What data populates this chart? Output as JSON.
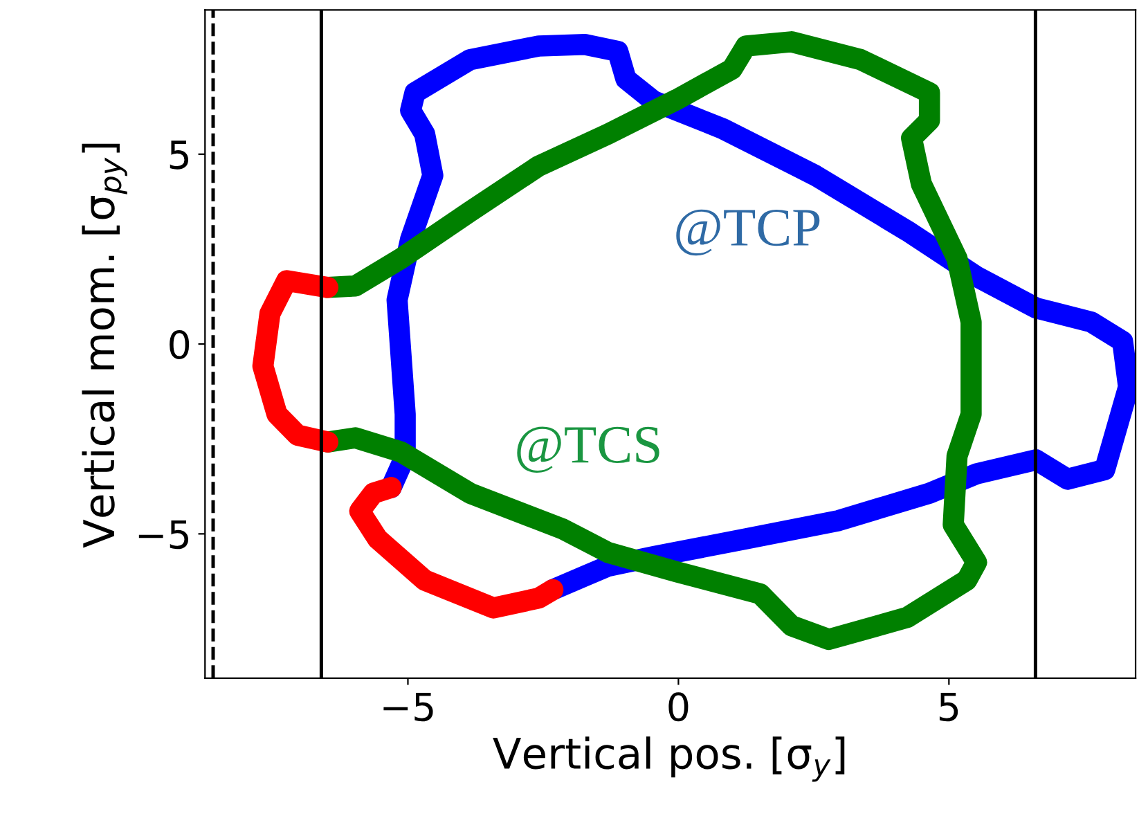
{
  "chart_data": {
    "type": "line",
    "xlabel": "Vertical pos. [σ$_{y}$]",
    "ylabel": "Vertical mom. [σ$_{py}$]",
    "xlim": [
      -8.75,
      8.45
    ],
    "ylim": [
      -8.8,
      8.8
    ],
    "xticks": [
      {
        "value": -5,
        "label": "−5"
      },
      0,
      5
    ],
    "yticks": [
      {
        "value": -5,
        "label": "−5"
      },
      0,
      5
    ],
    "grid": false,
    "legend": false,
    "line_style": "solid",
    "annotations": [
      "@TCP",
      "@TCS"
    ],
    "ref_lines": [
      {
        "axis": "x",
        "value": -6.6,
        "color": "#000000",
        "line_style": "solid"
      },
      {
        "axis": "x",
        "value": 6.6,
        "color": "#000000",
        "line_style": "solid"
      },
      {
        "axis": "x",
        "value": -8.6,
        "color": "#000000",
        "line_style": "dashed"
      }
    ],
    "series": [
      {
        "color": "#0000ff",
        "x": [
          -5.31,
          -5.05,
          -5.05,
          -5.2,
          -4.95,
          -4.54,
          -4.69,
          -4.95,
          -4.87,
          -3.85,
          -2.58,
          -1.73,
          -1.12,
          -0.97,
          -0.46,
          0.82,
          2.53,
          4.23,
          5.51,
          6.61,
          7.63,
          8.21,
          8.32,
          7.88,
          7.19,
          6.61,
          5.51,
          4.64,
          2.96,
          1.25,
          -0.46,
          -1.3,
          -1.73,
          -2.32
        ],
        "values": [
          -3.78,
          -2.95,
          -1.85,
          1.16,
          2.76,
          4.44,
          5.53,
          6.15,
          6.62,
          7.49,
          7.85,
          7.89,
          7.71,
          6.98,
          6.4,
          5.67,
          4.44,
          2.98,
          1.78,
          0.95,
          0.58,
          0.07,
          -1.13,
          -3.31,
          -3.56,
          -3.05,
          -3.42,
          -3.93,
          -4.65,
          -5.13,
          -5.6,
          -5.85,
          -6.11,
          -6.47
        ]
      },
      {
        "color": "#008000",
        "x": [
          -6.48,
          -5.97,
          -5.13,
          -3.85,
          -2.58,
          -1.3,
          -0.03,
          0.99,
          1.25,
          2.09,
          3.37,
          4.64,
          4.64,
          4.31,
          4.49,
          5.15,
          5.41,
          5.41,
          5.15,
          5.08,
          5.51,
          5.33,
          4.23,
          2.78,
          2.09,
          1.51,
          -0.03,
          -1.3,
          -2.14,
          -3.85,
          -5.13,
          -5.97,
          -6.48
        ],
        "values": [
          1.49,
          1.53,
          2.25,
          3.49,
          4.69,
          5.53,
          6.44,
          7.24,
          7.85,
          7.96,
          7.49,
          6.62,
          5.89,
          5.42,
          4.22,
          2.25,
          0.58,
          -1.85,
          -2.95,
          -4.76,
          -5.75,
          -6.22,
          -7.2,
          -7.78,
          -7.42,
          -6.58,
          -6.0,
          -5.49,
          -4.87,
          -3.93,
          -2.84,
          -2.47,
          -2.58
        ]
      },
      {
        "color": "#ff0000",
        "x": [
          -6.48,
          -7.04,
          -7.42,
          -7.68,
          -7.55,
          -7.24,
          -6.48
        ],
        "values": [
          -2.58,
          -2.4,
          -1.85,
          -0.58,
          0.8,
          1.67,
          1.49
        ]
      },
      {
        "color": "#ff0000",
        "x": [
          -2.32,
          -2.58,
          -3.42,
          -4.69,
          -5.56,
          -5.89,
          -5.64,
          -5.31
        ],
        "values": [
          -6.47,
          -6.69,
          -6.95,
          -6.22,
          -5.13,
          -4.4,
          -3.93,
          -3.78
        ]
      }
    ]
  }
}
